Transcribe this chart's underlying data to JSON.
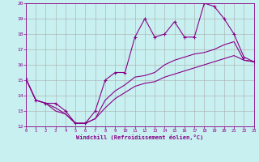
{
  "xlabel": "Windchill (Refroidissement éolien,°C)",
  "background_color": "#c8f0f0",
  "line_color": "#880088",
  "grid_color": "#aaaaaa",
  "xlim": [
    0,
    23
  ],
  "ylim": [
    12,
    20
  ],
  "xticks": [
    0,
    1,
    2,
    3,
    4,
    5,
    6,
    7,
    8,
    9,
    10,
    11,
    12,
    13,
    14,
    15,
    16,
    17,
    18,
    19,
    20,
    21,
    22,
    23
  ],
  "yticks": [
    12,
    13,
    14,
    15,
    16,
    17,
    18,
    19,
    20
  ],
  "upper_x": [
    0,
    1,
    2,
    3,
    4,
    5,
    6,
    7,
    8,
    9,
    10,
    11,
    12,
    13,
    14,
    15,
    16,
    17,
    18,
    19,
    20,
    21,
    22,
    23
  ],
  "upper_y": [
    15.1,
    13.7,
    13.5,
    13.5,
    13.0,
    12.2,
    12.2,
    13.0,
    15.0,
    15.5,
    15.5,
    17.8,
    19.0,
    17.8,
    18.0,
    18.8,
    17.8,
    17.8,
    20.0,
    19.8,
    19.0,
    18.0,
    16.5,
    16.2
  ],
  "middle_x": [
    0,
    1,
    2,
    3,
    4,
    5,
    6,
    7,
    8,
    9,
    10,
    11,
    12,
    13,
    14,
    15,
    16,
    17,
    18,
    19,
    20,
    21,
    22,
    23
  ],
  "middle_y": [
    15.1,
    13.7,
    13.5,
    13.2,
    12.8,
    12.2,
    12.2,
    12.5,
    13.7,
    14.3,
    14.7,
    15.2,
    15.3,
    15.5,
    16.0,
    16.3,
    16.5,
    16.7,
    16.8,
    17.0,
    17.3,
    17.5,
    16.3,
    16.2
  ],
  "lower_x": [
    0,
    1,
    2,
    3,
    4,
    5,
    6,
    7,
    8,
    9,
    10,
    11,
    12,
    13,
    14,
    15,
    16,
    17,
    18,
    19,
    20,
    21,
    22,
    23
  ],
  "lower_y": [
    15.1,
    13.7,
    13.5,
    13.0,
    12.8,
    12.2,
    12.2,
    12.5,
    13.2,
    13.8,
    14.2,
    14.6,
    14.8,
    14.9,
    15.2,
    15.4,
    15.6,
    15.8,
    16.0,
    16.2,
    16.4,
    16.6,
    16.3,
    16.2
  ]
}
